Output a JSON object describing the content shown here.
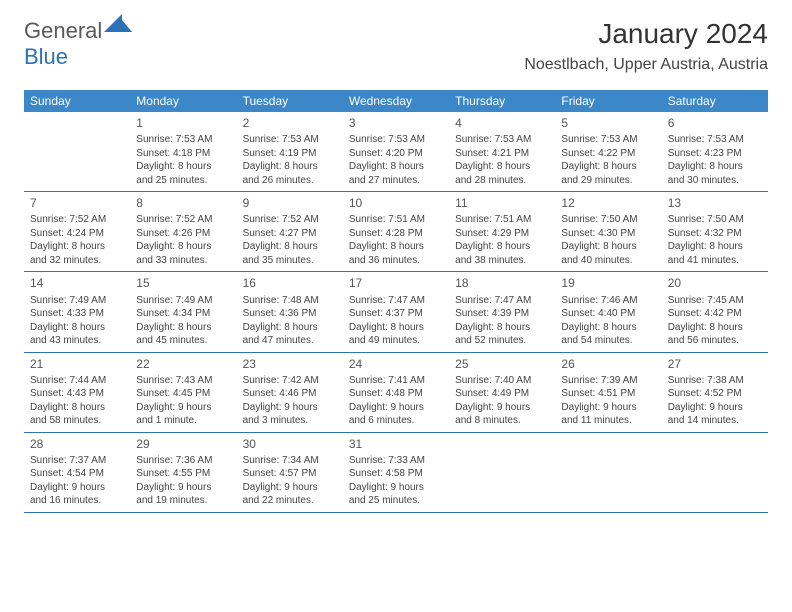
{
  "logo": {
    "part1": "General",
    "part2": "Blue"
  },
  "title": "January 2024",
  "location": "Noestlbach, Upper Austria, Austria",
  "colors": {
    "header_bg": "#3b87c8",
    "divider": "#2c72b8",
    "text": "#444444",
    "logo_gray": "#5a5a5a",
    "logo_blue": "#2c72b8"
  },
  "weekdays": [
    "Sunday",
    "Monday",
    "Tuesday",
    "Wednesday",
    "Thursday",
    "Friday",
    "Saturday"
  ],
  "weeks": [
    [
      {
        "day": "",
        "lines": []
      },
      {
        "day": "1",
        "lines": [
          "Sunrise: 7:53 AM",
          "Sunset: 4:18 PM",
          "Daylight: 8 hours",
          "and 25 minutes."
        ]
      },
      {
        "day": "2",
        "lines": [
          "Sunrise: 7:53 AM",
          "Sunset: 4:19 PM",
          "Daylight: 8 hours",
          "and 26 minutes."
        ]
      },
      {
        "day": "3",
        "lines": [
          "Sunrise: 7:53 AM",
          "Sunset: 4:20 PM",
          "Daylight: 8 hours",
          "and 27 minutes."
        ]
      },
      {
        "day": "4",
        "lines": [
          "Sunrise: 7:53 AM",
          "Sunset: 4:21 PM",
          "Daylight: 8 hours",
          "and 28 minutes."
        ]
      },
      {
        "day": "5",
        "lines": [
          "Sunrise: 7:53 AM",
          "Sunset: 4:22 PM",
          "Daylight: 8 hours",
          "and 29 minutes."
        ]
      },
      {
        "day": "6",
        "lines": [
          "Sunrise: 7:53 AM",
          "Sunset: 4:23 PM",
          "Daylight: 8 hours",
          "and 30 minutes."
        ]
      }
    ],
    [
      {
        "day": "7",
        "lines": [
          "Sunrise: 7:52 AM",
          "Sunset: 4:24 PM",
          "Daylight: 8 hours",
          "and 32 minutes."
        ]
      },
      {
        "day": "8",
        "lines": [
          "Sunrise: 7:52 AM",
          "Sunset: 4:26 PM",
          "Daylight: 8 hours",
          "and 33 minutes."
        ]
      },
      {
        "day": "9",
        "lines": [
          "Sunrise: 7:52 AM",
          "Sunset: 4:27 PM",
          "Daylight: 8 hours",
          "and 35 minutes."
        ]
      },
      {
        "day": "10",
        "lines": [
          "Sunrise: 7:51 AM",
          "Sunset: 4:28 PM",
          "Daylight: 8 hours",
          "and 36 minutes."
        ]
      },
      {
        "day": "11",
        "lines": [
          "Sunrise: 7:51 AM",
          "Sunset: 4:29 PM",
          "Daylight: 8 hours",
          "and 38 minutes."
        ]
      },
      {
        "day": "12",
        "lines": [
          "Sunrise: 7:50 AM",
          "Sunset: 4:30 PM",
          "Daylight: 8 hours",
          "and 40 minutes."
        ]
      },
      {
        "day": "13",
        "lines": [
          "Sunrise: 7:50 AM",
          "Sunset: 4:32 PM",
          "Daylight: 8 hours",
          "and 41 minutes."
        ]
      }
    ],
    [
      {
        "day": "14",
        "lines": [
          "Sunrise: 7:49 AM",
          "Sunset: 4:33 PM",
          "Daylight: 8 hours",
          "and 43 minutes."
        ]
      },
      {
        "day": "15",
        "lines": [
          "Sunrise: 7:49 AM",
          "Sunset: 4:34 PM",
          "Daylight: 8 hours",
          "and 45 minutes."
        ]
      },
      {
        "day": "16",
        "lines": [
          "Sunrise: 7:48 AM",
          "Sunset: 4:36 PM",
          "Daylight: 8 hours",
          "and 47 minutes."
        ]
      },
      {
        "day": "17",
        "lines": [
          "Sunrise: 7:47 AM",
          "Sunset: 4:37 PM",
          "Daylight: 8 hours",
          "and 49 minutes."
        ]
      },
      {
        "day": "18",
        "lines": [
          "Sunrise: 7:47 AM",
          "Sunset: 4:39 PM",
          "Daylight: 8 hours",
          "and 52 minutes."
        ]
      },
      {
        "day": "19",
        "lines": [
          "Sunrise: 7:46 AM",
          "Sunset: 4:40 PM",
          "Daylight: 8 hours",
          "and 54 minutes."
        ]
      },
      {
        "day": "20",
        "lines": [
          "Sunrise: 7:45 AM",
          "Sunset: 4:42 PM",
          "Daylight: 8 hours",
          "and 56 minutes."
        ]
      }
    ],
    [
      {
        "day": "21",
        "lines": [
          "Sunrise: 7:44 AM",
          "Sunset: 4:43 PM",
          "Daylight: 8 hours",
          "and 58 minutes."
        ]
      },
      {
        "day": "22",
        "lines": [
          "Sunrise: 7:43 AM",
          "Sunset: 4:45 PM",
          "Daylight: 9 hours",
          "and 1 minute."
        ]
      },
      {
        "day": "23",
        "lines": [
          "Sunrise: 7:42 AM",
          "Sunset: 4:46 PM",
          "Daylight: 9 hours",
          "and 3 minutes."
        ]
      },
      {
        "day": "24",
        "lines": [
          "Sunrise: 7:41 AM",
          "Sunset: 4:48 PM",
          "Daylight: 9 hours",
          "and 6 minutes."
        ]
      },
      {
        "day": "25",
        "lines": [
          "Sunrise: 7:40 AM",
          "Sunset: 4:49 PM",
          "Daylight: 9 hours",
          "and 8 minutes."
        ]
      },
      {
        "day": "26",
        "lines": [
          "Sunrise: 7:39 AM",
          "Sunset: 4:51 PM",
          "Daylight: 9 hours",
          "and 11 minutes."
        ]
      },
      {
        "day": "27",
        "lines": [
          "Sunrise: 7:38 AM",
          "Sunset: 4:52 PM",
          "Daylight: 9 hours",
          "and 14 minutes."
        ]
      }
    ],
    [
      {
        "day": "28",
        "lines": [
          "Sunrise: 7:37 AM",
          "Sunset: 4:54 PM",
          "Daylight: 9 hours",
          "and 16 minutes."
        ]
      },
      {
        "day": "29",
        "lines": [
          "Sunrise: 7:36 AM",
          "Sunset: 4:55 PM",
          "Daylight: 9 hours",
          "and 19 minutes."
        ]
      },
      {
        "day": "30",
        "lines": [
          "Sunrise: 7:34 AM",
          "Sunset: 4:57 PM",
          "Daylight: 9 hours",
          "and 22 minutes."
        ]
      },
      {
        "day": "31",
        "lines": [
          "Sunrise: 7:33 AM",
          "Sunset: 4:58 PM",
          "Daylight: 9 hours",
          "and 25 minutes."
        ]
      },
      {
        "day": "",
        "lines": []
      },
      {
        "day": "",
        "lines": []
      },
      {
        "day": "",
        "lines": []
      }
    ]
  ]
}
